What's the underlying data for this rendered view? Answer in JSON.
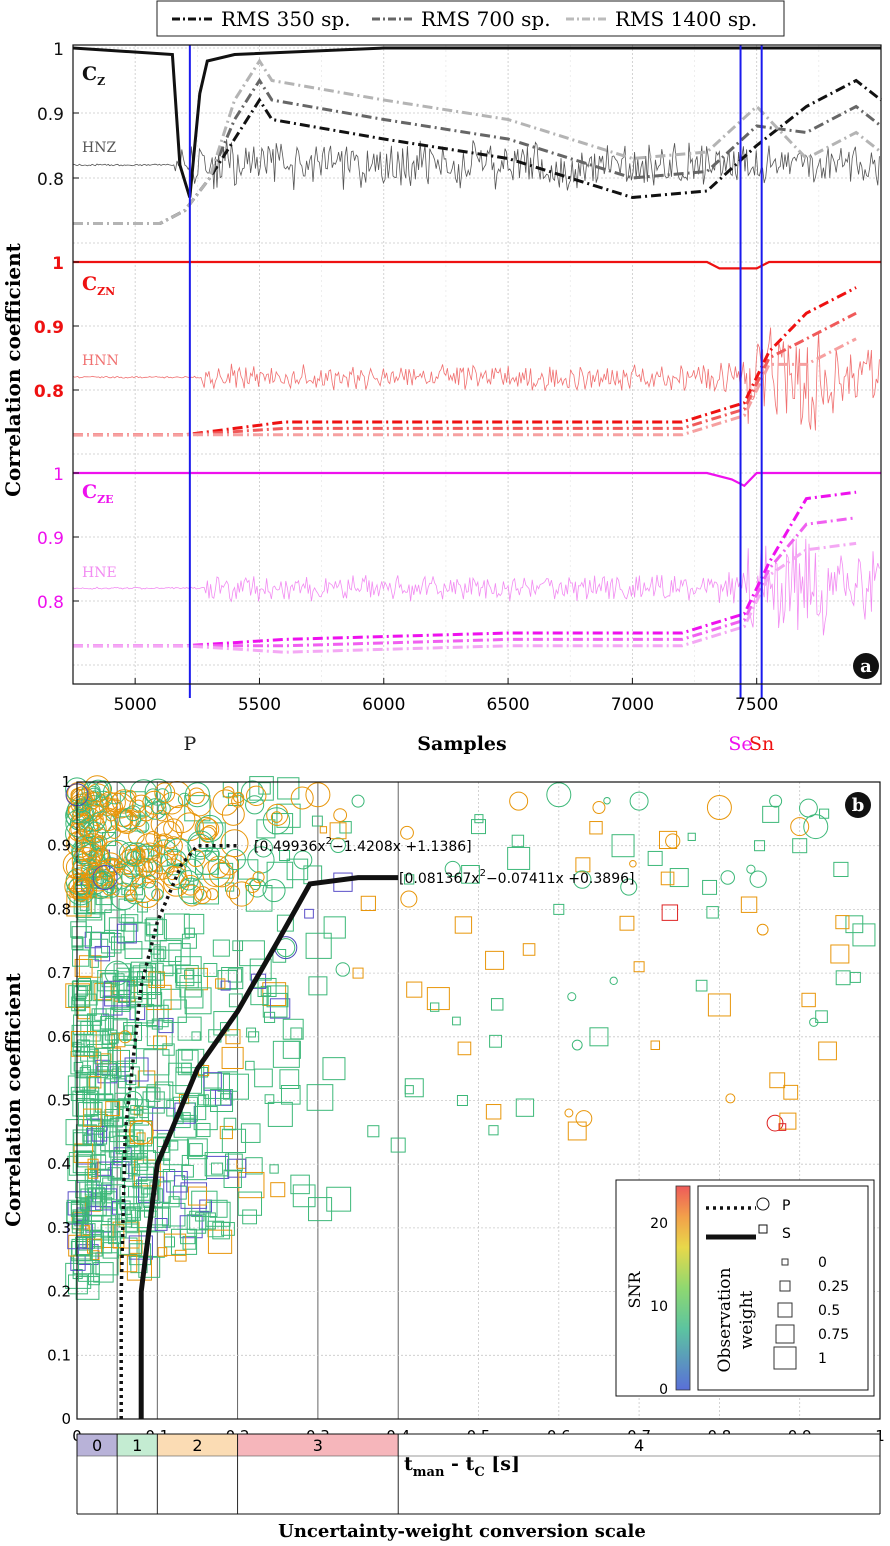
{
  "legend": [
    "RMS 350 sp.",
    "RMS 700 sp.",
    "RMS 1400 sp."
  ],
  "panel_a": {
    "label": "a",
    "ylabel": "Correlation coefficient",
    "xlabel": "Samples",
    "xticks": [
      "5000",
      "5500",
      "6000",
      "6500",
      "7000",
      "7500"
    ],
    "groups": [
      {
        "name": "C",
        "sub": "Z",
        "trace": "HNZ",
        "color": "#111111",
        "trace_color": "#555555",
        "ticks": [
          "1",
          "0.9",
          "0.8"
        ]
      },
      {
        "name": "C",
        "sub": "ZN",
        "trace": "HNN",
        "color": "#ee1111",
        "trace_color": "#f07070",
        "ticks": [
          "1",
          "0.9",
          "0.8"
        ]
      },
      {
        "name": "C",
        "sub": "ZE",
        "trace": "HNE",
        "color": "#ee11ee",
        "trace_color": "#f28cf2",
        "ticks": [
          "1",
          "0.9",
          "0.8"
        ]
      }
    ],
    "picks": [
      {
        "label": "P",
        "sample": 5220,
        "color": "#1a1aee",
        "label_color": "#222222"
      },
      {
        "label": "Se",
        "sample": 7435,
        "color": "#1a1aee",
        "label_color": "#ee11ee"
      },
      {
        "label": "Sn",
        "sample": 7520,
        "color": "#1a1aee",
        "label_color": "#ee1111"
      }
    ]
  },
  "panel_b": {
    "label": "b",
    "ylabel": "Correlation coefficient",
    "xlabel_main": "t",
    "xlabel_sub1": "man",
    "xlabel_mid": " - t",
    "xlabel_sub2": "C",
    "xlabel_end": " [s]",
    "xticks": [
      "0",
      "0.1",
      "0.2",
      "0.3",
      "0.4",
      "0.5",
      "0.6",
      "0.7",
      "0.8",
      "0.9",
      "1"
    ],
    "yticks": [
      "0",
      "0.1",
      "0.2",
      "0.3",
      "0.4",
      "0.5",
      "0.6",
      "0.7",
      "0.8",
      "0.9",
      "1"
    ],
    "fit_p": "[0.49936x",
    "fit_p_exp": "2",
    "fit_p_rest": "−1.4208x +1.1386]",
    "fit_s": "[0.081367x",
    "fit_s_exp": "2",
    "fit_s_rest": "−0.07411x +0.3896]",
    "colorbar": {
      "label": "SNR",
      "ticks": [
        "0",
        "10",
        "20"
      ]
    },
    "key": {
      "p": "P",
      "s": "S",
      "weight_title1": "Observation",
      "weight_title2": "weight",
      "weights": [
        "0",
        "0.25",
        "0.5",
        "0.75",
        "1"
      ]
    }
  },
  "scale": {
    "title": "Uncertainty-weight conversion scale",
    "classes": [
      {
        "label": "0",
        "color": "#b8b2d8"
      },
      {
        "label": "1",
        "color": "#c4ecd2"
      },
      {
        "label": "2",
        "color": "#fbdcb4"
      },
      {
        "label": "3",
        "color": "#f6b6bb"
      },
      {
        "label": "4",
        "color": "#ffffff"
      }
    ]
  },
  "chart_data": [
    {
      "type": "line",
      "title": "",
      "xlabel": "Samples",
      "ylabel": "Correlation coefficient",
      "xlim": [
        4750,
        8000
      ],
      "series": [
        {
          "name": "C_Z",
          "x": [
            4750,
            5150,
            5180,
            5220,
            5260,
            5290,
            5400,
            6000,
            7000,
            7500,
            8000
          ],
          "y": [
            1.0,
            0.99,
            0.82,
            0.77,
            0.93,
            0.98,
            0.99,
            1.0,
            1.0,
            1.0,
            1.0
          ]
        },
        {
          "name": "C_Z RMS 350 sp.",
          "x": [
            4750,
            5100,
            5200,
            5300,
            5400,
            5500,
            5550,
            6000,
            6500,
            7000,
            7300,
            7500,
            7700,
            7900,
            8000
          ],
          "y": [
            0.73,
            0.73,
            0.75,
            0.8,
            0.86,
            0.92,
            0.89,
            0.86,
            0.83,
            0.77,
            0.78,
            0.85,
            0.91,
            0.95,
            0.92
          ]
        },
        {
          "name": "C_ZN",
          "x": [
            4750,
            7300,
            7350,
            7500,
            7550,
            8000
          ],
          "y": [
            1.0,
            1.0,
            0.99,
            0.99,
            1.0,
            1.0
          ]
        },
        {
          "name": "C_ZN RMS 350 sp.",
          "x": [
            4750,
            5200,
            5600,
            6500,
            7200,
            7450,
            7550,
            7700,
            7900
          ],
          "y": [
            0.73,
            0.73,
            0.75,
            0.75,
            0.75,
            0.78,
            0.86,
            0.92,
            0.96
          ]
        },
        {
          "name": "C_ZE",
          "x": [
            4750,
            7300,
            7400,
            7450,
            7500,
            8000
          ],
          "y": [
            1.0,
            1.0,
            0.99,
            0.98,
            1.0,
            1.0
          ]
        },
        {
          "name": "C_ZE RMS 350 sp.",
          "x": [
            4750,
            5200,
            5600,
            6500,
            7200,
            7450,
            7550,
            7700,
            7900
          ],
          "y": [
            0.73,
            0.73,
            0.74,
            0.75,
            0.75,
            0.78,
            0.86,
            0.96,
            0.97
          ]
        }
      ]
    },
    {
      "type": "scatter",
      "xlabel": "t_man - t_C [s]",
      "ylabel": "Correlation coefficient",
      "xlim": [
        0,
        1
      ],
      "ylim": [
        0,
        1
      ],
      "legend": "bottom-right",
      "fits": [
        {
          "name": "P",
          "expression": "0.49936x^2 - 1.4208x + 1.1386",
          "x": [
            0.055,
            0.055,
            0.06,
            0.08,
            0.1,
            0.13,
            0.15,
            0.2
          ],
          "y": [
            0.0,
            0.2,
            0.45,
            0.68,
            0.78,
            0.87,
            0.9,
            0.9
          ]
        },
        {
          "name": "S",
          "expression": "0.081367x^2 - 0.07411x + 0.3896",
          "x": [
            0.08,
            0.08,
            0.1,
            0.15,
            0.2,
            0.25,
            0.29,
            0.35,
            0.4
          ],
          "y": [
            0.0,
            0.2,
            0.4,
            0.55,
            0.64,
            0.75,
            0.84,
            0.85,
            0.85
          ]
        }
      ],
      "series": [
        {
          "name": "P",
          "x": [
            0.0,
            0.01,
            0.02,
            0.03,
            0.04,
            0.05,
            0.06,
            0.07,
            0.08,
            0.1,
            0.12,
            0.15,
            0.2,
            0.26,
            0.3,
            0.35,
            0.55,
            0.6,
            0.65,
            0.7,
            0.8,
            0.87,
            0.9,
            0.92
          ],
          "y": [
            0.98,
            0.95,
            0.9,
            0.85,
            0.97,
            0.7,
            0.6,
            0.5,
            0.45,
            0.96,
            0.9,
            0.98,
            0.97,
            0.74,
            0.98,
            0.97,
            0.97,
            0.98,
            0.96,
            0.97,
            0.96,
            0.97,
            0.93,
            0.93
          ]
        },
        {
          "name": "S",
          "x": [
            0.02,
            0.04,
            0.05,
            0.08,
            0.1,
            0.14,
            0.15,
            0.18,
            0.22,
            0.25,
            0.3,
            0.32,
            0.35,
            0.4,
            0.42,
            0.45,
            0.48,
            0.5,
            0.52,
            0.55,
            0.6,
            0.63,
            0.65,
            0.68,
            0.7,
            0.72,
            0.75,
            0.8,
            0.85,
            0.9,
            0.95,
            0.98
          ],
          "y": [
            0.4,
            0.55,
            0.3,
            0.45,
            0.62,
            0.75,
            0.35,
            0.5,
            0.6,
            0.36,
            0.68,
            0.55,
            0.7,
            0.43,
            0.52,
            0.66,
            0.5,
            0.93,
            0.72,
            0.88,
            0.8,
            0.87,
            0.6,
            0.9,
            0.71,
            0.88,
            0.85,
            0.65,
            0.9,
            0.9,
            0.73,
            0.76
          ]
        }
      ]
    }
  ]
}
